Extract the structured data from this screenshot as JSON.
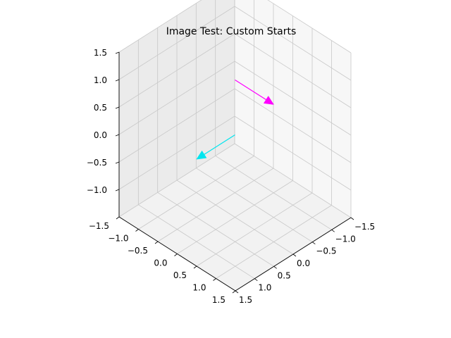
{
  "chart_data": {
    "type": "3d-quiver",
    "title": "Image Test: Custom Starts",
    "x_ticks": [
      "−1.5",
      "−1.0",
      "−0.5",
      "0.0",
      "0.5",
      "1.0",
      "1.5"
    ],
    "y_ticks": [
      "−1.5",
      "−1.0",
      "−0.5",
      "0.0",
      "0.5",
      "1.0",
      "1.5"
    ],
    "z_ticks": [
      "−1.0",
      "−0.5",
      "0.0",
      "0.5",
      "1.0",
      "1.5"
    ],
    "xlim": [
      -1.5,
      1.5
    ],
    "ylim": [
      -1.5,
      1.5
    ],
    "zlim": [
      -1.5,
      1.5
    ],
    "grid": true,
    "arrows": [
      {
        "color": "#ff00ff",
        "start": [
          0,
          0,
          1
        ],
        "end": [
          1,
          0,
          1
        ]
      },
      {
        "color": "#00e5ee",
        "start": [
          0,
          0,
          0
        ],
        "end": [
          0,
          1,
          0
        ]
      }
    ]
  }
}
